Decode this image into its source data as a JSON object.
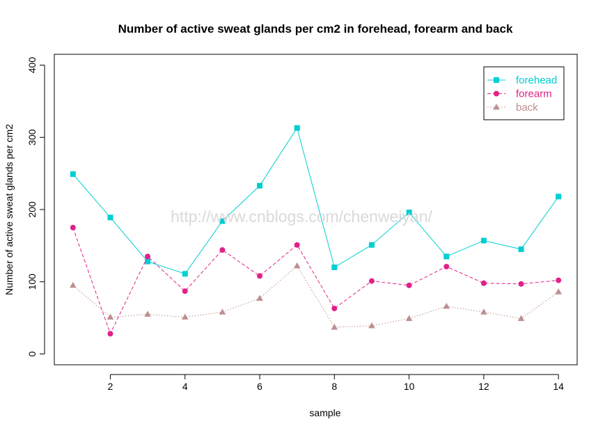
{
  "chart_data": {
    "type": "line",
    "title": "Number of active sweat glands per cm2 in forehead, forearm and back",
    "xlabel": "sample",
    "ylabel": "Number of active sweat glands per cm2",
    "x": [
      1,
      2,
      3,
      4,
      5,
      6,
      7,
      8,
      9,
      10,
      11,
      12,
      13,
      14
    ],
    "xticks": [
      "2",
      "4",
      "6",
      "8",
      "10",
      "12",
      "14"
    ],
    "yticks": [
      "0",
      "100",
      "200",
      "300",
      "400"
    ],
    "xlim": [
      0.5,
      14.5
    ],
    "ylim": [
      -15,
      415
    ],
    "grid": false,
    "legend_position": "top-right",
    "series": [
      {
        "name": "forehead",
        "color": "#00CED1",
        "marker": "square",
        "line_style": "solid",
        "values": [
          249,
          189,
          128,
          111,
          184,
          233,
          313,
          120,
          151,
          196,
          135,
          157,
          145,
          218
        ]
      },
      {
        "name": "forearm",
        "color": "#E0218A",
        "marker": "circle",
        "line_style": "dashed",
        "values": [
          175,
          28,
          135,
          87,
          144,
          108,
          151,
          63,
          101,
          95,
          121,
          98,
          97,
          102
        ]
      },
      {
        "name": "back",
        "color": "#BC8F8F",
        "marker": "triangle",
        "line_style": "dotted",
        "values": [
          95,
          51,
          55,
          51,
          58,
          77,
          122,
          37,
          39,
          49,
          66,
          58,
          49,
          86
        ]
      }
    ]
  },
  "watermark": "http://www.cnblogs.com/chenweiyan/"
}
